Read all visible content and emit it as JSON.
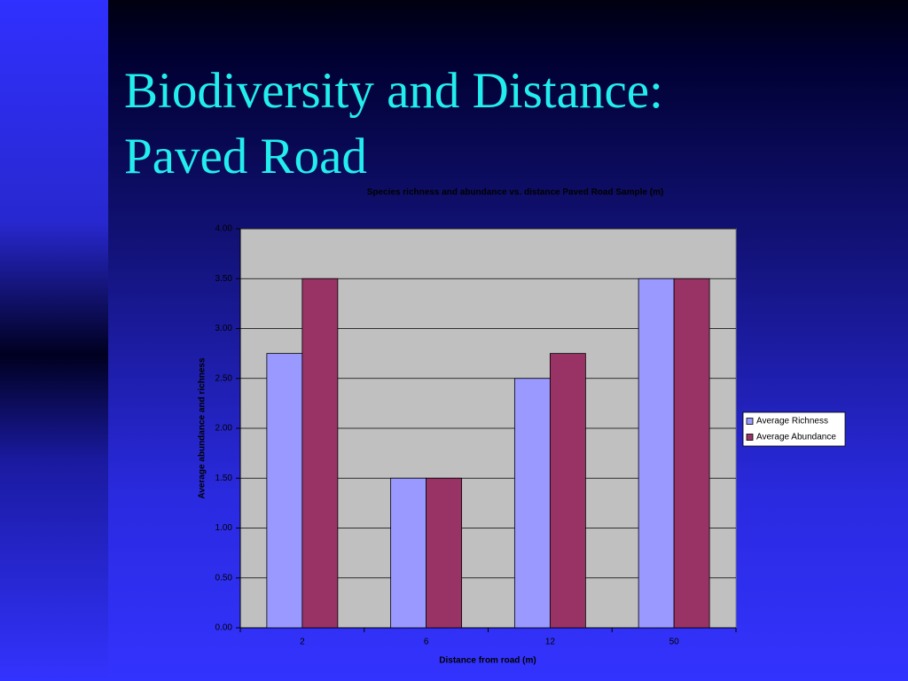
{
  "slide": {
    "title": "Biodiversity and Distance: Paved Road"
  },
  "chart_data": {
    "type": "bar",
    "title": "Species richness and abundance vs. distance Paved Road Sample (m)",
    "x_label": "Distance from road (m)",
    "y_label": "Average abundance and richness",
    "categories": [
      "2",
      "6",
      "12",
      "50"
    ],
    "series": [
      {
        "name": "Average Richness",
        "color": "#9999ff",
        "values": [
          2.75,
          1.5,
          2.5,
          3.5
        ]
      },
      {
        "name": "Average Abundance",
        "color": "#993366",
        "values": [
          3.5,
          1.5,
          2.75,
          3.5
        ]
      }
    ],
    "ylim": [
      0,
      4
    ],
    "yticks": [
      {
        "value": 0,
        "label": "0.00"
      },
      {
        "value": 0.5,
        "label": "0.50"
      },
      {
        "value": 1,
        "label": "1.00"
      },
      {
        "value": 1.5,
        "label": "1.50"
      },
      {
        "value": 2,
        "label": "2.00"
      },
      {
        "value": 2.5,
        "label": "2.50"
      },
      {
        "value": 3,
        "label": "3.00"
      },
      {
        "value": 3.5,
        "label": "3.50"
      },
      {
        "value": 4,
        "label": "4.00"
      }
    ],
    "grid": true,
    "legend": "right"
  }
}
